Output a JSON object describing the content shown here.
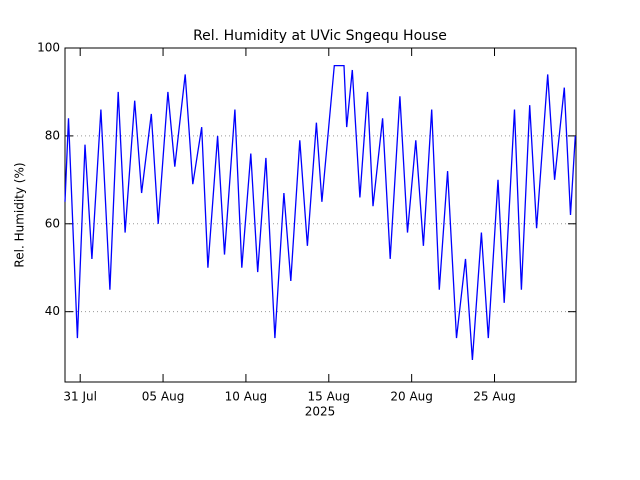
{
  "chart_data": {
    "type": "line",
    "title": "Rel. Humidity at UVic Sngequ House",
    "ylabel": "Rel. Humidity (%)",
    "xlabel": "2025",
    "color": "#0000ff",
    "x": [
      "2025-07-30T02:00",
      "2025-07-30T07:00",
      "2025-07-30T20:00",
      "2025-07-31T07:00",
      "2025-07-31T17:00",
      "2025-08-01T06:00",
      "2025-08-01T19:00",
      "2025-08-02T07:00",
      "2025-08-02T17:00",
      "2025-08-03T07:00",
      "2025-08-03T17:00",
      "2025-08-04T07:00",
      "2025-08-04T17:00",
      "2025-08-05T07:00",
      "2025-08-05T17:00",
      "2025-08-06T08:00",
      "2025-08-06T19:00",
      "2025-08-07T08:00",
      "2025-08-07T17:00",
      "2025-08-08T07:00",
      "2025-08-08T17:00",
      "2025-08-09T08:00",
      "2025-08-09T18:00",
      "2025-08-10T07:00",
      "2025-08-10T17:00",
      "2025-08-11T05:00",
      "2025-08-11T18:00",
      "2025-08-12T07:00",
      "2025-08-12T17:00",
      "2025-08-13T06:00",
      "2025-08-13T17:00",
      "2025-08-14T06:00",
      "2025-08-14T14:00",
      "2025-08-15T08:00",
      "2025-08-15T22:00",
      "2025-08-16T02:00",
      "2025-08-16T10:00",
      "2025-08-16T21:00",
      "2025-08-17T08:00",
      "2025-08-17T16:00",
      "2025-08-18T06:00",
      "2025-08-18T17:00",
      "2025-08-19T07:00",
      "2025-08-19T18:00",
      "2025-08-20T06:00",
      "2025-08-20T17:00",
      "2025-08-21T05:00",
      "2025-08-21T16:00",
      "2025-08-22T04:00",
      "2025-08-22T17:00",
      "2025-08-23T06:00",
      "2025-08-23T16:00",
      "2025-08-24T05:00",
      "2025-08-24T15:00",
      "2025-08-25T05:00",
      "2025-08-25T14:00",
      "2025-08-26T05:00",
      "2025-08-26T15:00",
      "2025-08-27T03:00",
      "2025-08-27T13:00",
      "2025-08-28T05:00",
      "2025-08-28T15:00",
      "2025-08-29T05:00",
      "2025-08-29T14:00",
      "2025-08-29T21:00"
    ],
    "values": [
      65,
      84,
      34,
      78,
      52,
      86,
      45,
      90,
      58,
      88,
      67,
      85,
      60,
      90,
      73,
      94,
      69,
      82,
      50,
      80,
      53,
      86,
      50,
      76,
      49,
      75,
      34,
      67,
      47,
      79,
      55,
      83,
      65,
      96,
      96,
      82,
      95,
      66,
      90,
      64,
      84,
      52,
      89,
      58,
      79,
      55,
      86,
      45,
      72,
      34,
      52,
      29,
      58,
      34,
      70,
      42,
      86,
      45,
      87,
      59,
      94,
      70,
      91,
      62,
      80
    ],
    "xlim": [
      "2025-07-30T02:00",
      "2025-08-29T22:00"
    ],
    "xticks": [
      {
        "value": "2025-07-31T00:00",
        "label": "31 Jul"
      },
      {
        "value": "2025-08-05T00:00",
        "label": "05 Aug"
      },
      {
        "value": "2025-08-10T00:00",
        "label": "10 Aug"
      },
      {
        "value": "2025-08-15T00:00",
        "label": "15 Aug"
      },
      {
        "value": "2025-08-20T00:00",
        "label": "20 Aug"
      },
      {
        "value": "2025-08-25T00:00",
        "label": "25 Aug"
      }
    ],
    "ylim": [
      24,
      100
    ],
    "yticks": [
      40,
      60,
      80,
      100
    ],
    "grid": true
  }
}
